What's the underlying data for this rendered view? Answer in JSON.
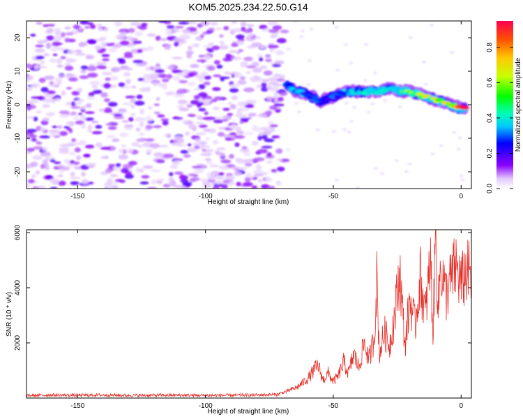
{
  "figure_title": "KOM5.2025.234.22.50.G14",
  "chart_data": [
    {
      "type": "heatmap",
      "xlabel": "Height of straight line (km)",
      "ylabel": "Frequency (Hz)",
      "xlim": [
        -170,
        4
      ],
      "ylim": [
        -25,
        25
      ],
      "xticks": [
        -150,
        -100,
        -50,
        0
      ],
      "yticks": [
        -20,
        -10,
        0,
        10,
        20
      ],
      "colorbar": {
        "label": "Normalized spectral amplitude",
        "range": [
          0,
          0.95
        ],
        "ticks": [
          0.0,
          0.2,
          0.4,
          0.6,
          0.8
        ]
      },
      "noise_region": {
        "x_range": [
          -170,
          -69
        ],
        "y_range": [
          -25,
          25
        ],
        "typical_amplitude": 0.15
      },
      "signal_track": [
        {
          "x": -68,
          "y": 6,
          "amp": 0.3
        },
        {
          "x": -64,
          "y": 4,
          "amp": 0.35
        },
        {
          "x": -60,
          "y": 3,
          "amp": 0.3
        },
        {
          "x": -55,
          "y": 1,
          "amp": 0.28
        },
        {
          "x": -52,
          "y": 2,
          "amp": 0.25
        },
        {
          "x": -48,
          "y": 3,
          "amp": 0.3
        },
        {
          "x": -44,
          "y": 4,
          "amp": 0.32
        },
        {
          "x": -40,
          "y": 4,
          "amp": 0.35
        },
        {
          "x": -36,
          "y": 4,
          "amp": 0.4
        },
        {
          "x": -32,
          "y": 4,
          "amp": 0.45
        },
        {
          "x": -28,
          "y": 5,
          "amp": 0.38
        },
        {
          "x": -24,
          "y": 4,
          "amp": 0.45
        },
        {
          "x": -20,
          "y": 4,
          "amp": 0.55
        },
        {
          "x": -16,
          "y": 3,
          "amp": 0.6
        },
        {
          "x": -12,
          "y": 2,
          "amp": 0.6
        },
        {
          "x": -8,
          "y": 1,
          "amp": 0.65
        },
        {
          "x": -4,
          "y": 0,
          "amp": 0.7
        },
        {
          "x": -1,
          "y": -1,
          "amp": 0.85
        },
        {
          "x": 2,
          "y": -1,
          "amp": 0.95
        }
      ]
    },
    {
      "type": "line",
      "xlabel": "Height of straight line (km)",
      "ylabel": "SNR (10 * v/v)",
      "xlim": [
        -170,
        4
      ],
      "ylim": [
        0,
        6100
      ],
      "xticks": [
        -150,
        -100,
        -50,
        0
      ],
      "yticks": [
        2000,
        4000,
        6000
      ],
      "color": "#e8302a",
      "series": {
        "name": "SNR",
        "x": [
          -170,
          -160,
          -150,
          -140,
          -130,
          -120,
          -110,
          -100,
          -90,
          -80,
          -72,
          -68,
          -64,
          -60,
          -56,
          -54,
          -52,
          -50,
          -48,
          -46,
          -44,
          -42,
          -40,
          -38,
          -36,
          -34,
          -33,
          -32,
          -30,
          -28,
          -26,
          -24,
          -22,
          -20,
          -18,
          -16,
          -14,
          -12,
          -11,
          -10,
          -9,
          -8,
          -6,
          -4,
          -2,
          0,
          2,
          4
        ],
        "y": [
          90,
          110,
          100,
          110,
          95,
          100,
          105,
          95,
          100,
          110,
          130,
          250,
          400,
          700,
          1200,
          650,
          900,
          600,
          800,
          1300,
          900,
          1600,
          1100,
          2000,
          1400,
          2200,
          4300,
          1600,
          2400,
          1900,
          3000,
          4600,
          1900,
          3600,
          2600,
          4400,
          3000,
          5000,
          2300,
          6100,
          3200,
          4900,
          3700,
          4300,
          4800,
          4100,
          4600,
          4400
        ]
      }
    }
  ]
}
